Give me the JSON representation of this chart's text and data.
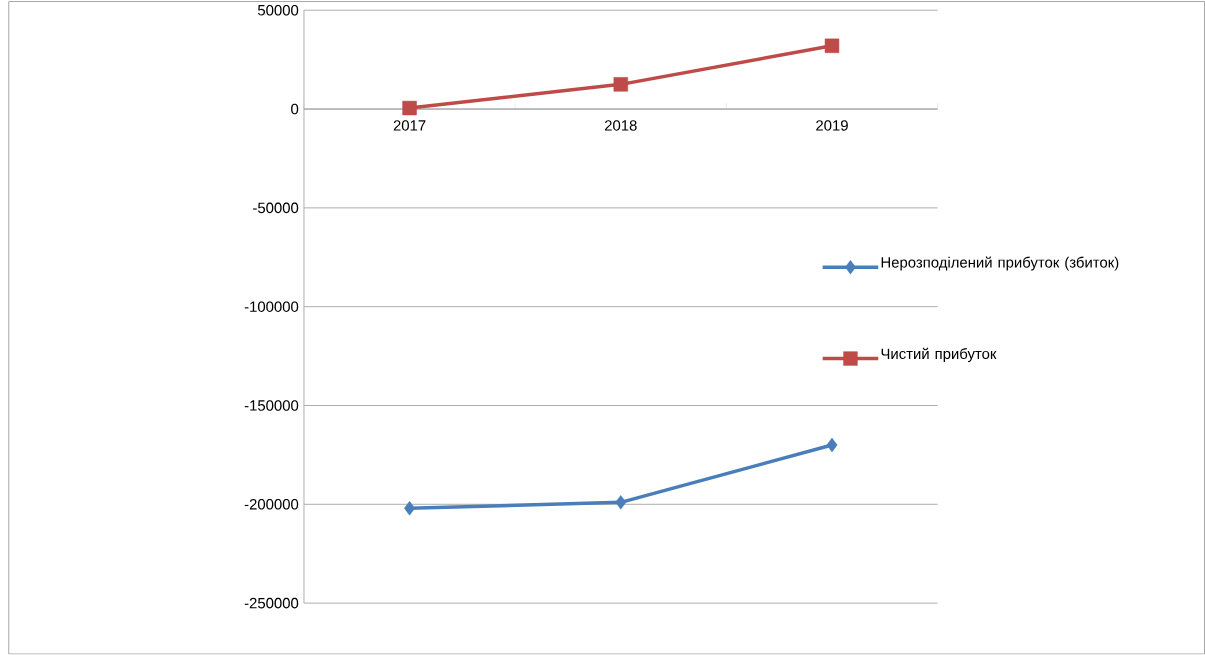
{
  "chart_data": {
    "type": "line",
    "categories": [
      "2017",
      "2018",
      "2019"
    ],
    "series": [
      {
        "name": "Нерозподілений прибуток (збиток)",
        "color": "#4a7ebb",
        "marker": "diamond",
        "values": [
          -202000,
          -199000,
          -170000
        ]
      },
      {
        "name": "Чистий прибуток",
        "color": "#be4b48",
        "marker": "square",
        "values": [
          500,
          12500,
          32000
        ]
      }
    ],
    "ylim": [
      -250000,
      50000
    ],
    "yticks": [
      -250000,
      -200000,
      -150000,
      -100000,
      -50000,
      0,
      50000
    ],
    "grid": "y",
    "legend": "right"
  }
}
